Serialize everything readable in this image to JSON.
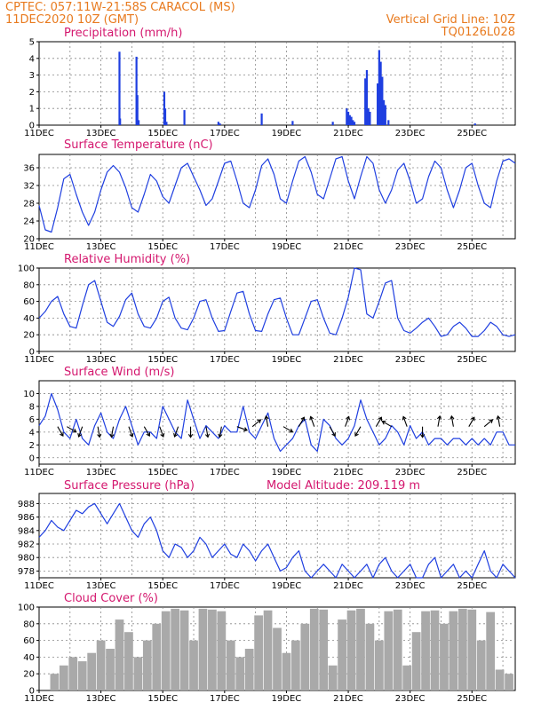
{
  "header": {
    "line1": "CPTEC:   057:11W-21:58S   CARACOL (MS)",
    "line2_left": "11DEC2020  10Z (GMT)",
    "line2_right": "Vertical Grid Line: 10Z",
    "line3_right": "TQ0126L028"
  },
  "colors": {
    "header": "#e87a1e",
    "title": "#d4176e",
    "series": "#1f3fe0",
    "cloud": "#a9a9a9"
  },
  "x_axis": {
    "start_date": "11DEC",
    "end_date": "26DEC",
    "tick_labels": [
      "11DEC",
      "13DEC",
      "15DEC",
      "17DEC",
      "19DEC",
      "21DEC",
      "23DEC",
      "25DEC"
    ],
    "tick_positions": [
      11,
      13,
      15,
      17,
      19,
      21,
      23,
      25
    ]
  },
  "chart_data": [
    {
      "id": "precip",
      "type": "bar",
      "title": "Precipitation (mm/h)",
      "ylim": [
        0,
        5
      ],
      "yticks": [
        0,
        1,
        2,
        3,
        4,
        5
      ],
      "xlim": [
        11,
        26.4
      ],
      "x": [
        13.6,
        13.62,
        14.15,
        14.18,
        14.22,
        15.05,
        15.08,
        15.12,
        15.7,
        16.8,
        16.85,
        18.2,
        19.2,
        20.5,
        20.95,
        21.0,
        21.05,
        21.1,
        21.15,
        21.2,
        21.55,
        21.6,
        21.65,
        21.7,
        21.95,
        22.0,
        22.05,
        22.1,
        22.15,
        22.2,
        22.3,
        25.1
      ],
      "values": [
        4.4,
        0.4,
        4.1,
        1.8,
        0.3,
        2.0,
        1.0,
        0.2,
        0.9,
        0.2,
        0.1,
        0.7,
        0.25,
        0.2,
        1.0,
        0.8,
        0.6,
        0.5,
        0.3,
        0.2,
        2.8,
        3.3,
        1.0,
        0.8,
        2.5,
        4.5,
        3.8,
        2.9,
        1.5,
        1.2,
        0.3,
        0.1
      ]
    },
    {
      "id": "temp",
      "type": "line",
      "title": "Surface Temperature (nC)",
      "ylim": [
        20,
        39
      ],
      "yticks": [
        20,
        24,
        28,
        32,
        36
      ],
      "xlim": [
        11,
        26.4
      ],
      "x": [
        11,
        11.2,
        11.4,
        11.6,
        11.8,
        12.0,
        12.2,
        12.4,
        12.6,
        12.8,
        13.0,
        13.2,
        13.4,
        13.6,
        13.8,
        14.0,
        14.2,
        14.4,
        14.6,
        14.8,
        15.0,
        15.2,
        15.4,
        15.6,
        15.8,
        16.0,
        16.2,
        16.4,
        16.6,
        16.8,
        17.0,
        17.2,
        17.4,
        17.6,
        17.8,
        18.0,
        18.2,
        18.4,
        18.6,
        18.8,
        19.0,
        19.2,
        19.4,
        19.6,
        19.8,
        20.0,
        20.2,
        20.4,
        20.6,
        20.8,
        21.0,
        21.2,
        21.4,
        21.6,
        21.8,
        22.0,
        22.2,
        22.4,
        22.6,
        22.8,
        23.0,
        23.2,
        23.4,
        23.6,
        23.8,
        24.0,
        24.2,
        24.4,
        24.6,
        24.8,
        25.0,
        25.2,
        25.4,
        25.6,
        25.8,
        26.0,
        26.2,
        26.4
      ],
      "values": [
        27.5,
        22,
        21.5,
        27,
        33.5,
        34.5,
        30,
        26,
        23,
        26,
        31,
        35,
        36.5,
        35,
        31.5,
        27,
        26,
        30,
        34.5,
        33,
        29.5,
        28,
        32,
        36,
        37,
        34,
        31,
        27.5,
        29,
        33,
        37,
        37.5,
        33,
        28,
        27,
        31,
        36.5,
        38,
        34.5,
        29,
        28,
        33,
        37.5,
        38.5,
        35,
        30,
        29,
        33.5,
        38,
        38.5,
        33,
        29,
        34,
        38.5,
        37,
        31,
        28,
        31,
        35.5,
        37,
        33,
        28,
        29,
        34,
        37.5,
        36,
        31,
        27,
        31,
        36,
        37,
        32,
        28,
        27,
        33,
        37.5,
        38,
        37
      ]
    },
    {
      "id": "rh",
      "type": "line",
      "title": "Relative Humidity (%)",
      "ylim": [
        0,
        100
      ],
      "yticks": [
        0,
        20,
        40,
        60,
        80,
        100
      ],
      "xlim": [
        11,
        26.4
      ],
      "x": [
        11,
        11.2,
        11.4,
        11.6,
        11.8,
        12.0,
        12.2,
        12.4,
        12.6,
        12.8,
        13.0,
        13.2,
        13.4,
        13.6,
        13.8,
        14.0,
        14.2,
        14.4,
        14.6,
        14.8,
        15.0,
        15.2,
        15.4,
        15.6,
        15.8,
        16.0,
        16.2,
        16.4,
        16.6,
        16.8,
        17.0,
        17.2,
        17.4,
        17.6,
        17.8,
        18.0,
        18.2,
        18.4,
        18.6,
        18.8,
        19.0,
        19.2,
        19.4,
        19.6,
        19.8,
        20.0,
        20.2,
        20.4,
        20.6,
        20.8,
        21.0,
        21.2,
        21.4,
        21.6,
        21.8,
        22.0,
        22.2,
        22.4,
        22.6,
        22.8,
        23.0,
        23.2,
        23.4,
        23.6,
        23.8,
        24.0,
        24.2,
        24.4,
        24.6,
        24.8,
        25.0,
        25.2,
        25.4,
        25.6,
        25.8,
        26.0,
        26.2,
        26.4
      ],
      "values": [
        40,
        48,
        60,
        66,
        45,
        30,
        28,
        55,
        80,
        85,
        60,
        35,
        30,
        42,
        62,
        70,
        45,
        30,
        28,
        40,
        60,
        65,
        40,
        28,
        26,
        40,
        60,
        62,
        40,
        24,
        25,
        48,
        70,
        72,
        45,
        25,
        24,
        45,
        62,
        64,
        40,
        20,
        20,
        40,
        60,
        62,
        40,
        22,
        20,
        40,
        65,
        100,
        98,
        45,
        40,
        60,
        82,
        85,
        40,
        25,
        22,
        28,
        35,
        40,
        30,
        18,
        20,
        30,
        35,
        28,
        18,
        18,
        25,
        35,
        30,
        20,
        18,
        20
      ]
    },
    {
      "id": "wind",
      "type": "line",
      "title": "Surface Wind (m/s)",
      "ylim": [
        -1,
        12
      ],
      "yticks": [
        0,
        2,
        4,
        6,
        8,
        10
      ],
      "xlim": [
        11,
        26.4
      ],
      "x": [
        11,
        11.2,
        11.4,
        11.6,
        11.8,
        12.0,
        12.2,
        12.4,
        12.6,
        12.8,
        13.0,
        13.2,
        13.4,
        13.6,
        13.8,
        14.0,
        14.2,
        14.4,
        14.6,
        14.8,
        15.0,
        15.2,
        15.4,
        15.6,
        15.8,
        16.0,
        16.2,
        16.4,
        16.6,
        16.8,
        17.0,
        17.2,
        17.4,
        17.6,
        17.8,
        18.0,
        18.2,
        18.4,
        18.6,
        18.8,
        19.0,
        19.2,
        19.4,
        19.6,
        19.8,
        20.0,
        20.2,
        20.4,
        20.6,
        20.8,
        21.0,
        21.2,
        21.4,
        21.6,
        21.8,
        22.0,
        22.2,
        22.4,
        22.6,
        22.8,
        23.0,
        23.2,
        23.4,
        23.6,
        23.8,
        24.0,
        24.2,
        24.4,
        24.6,
        24.8,
        25.0,
        25.2,
        25.4,
        25.6,
        25.8,
        26.0,
        26.2,
        26.4
      ],
      "values": [
        5,
        6.5,
        10,
        7.5,
        4,
        3,
        6,
        3,
        2,
        5,
        7,
        4,
        3,
        6,
        8,
        5,
        2,
        4,
        4,
        3,
        8,
        6,
        4,
        3,
        9,
        6,
        3,
        5,
        4,
        3,
        5,
        4,
        4,
        8,
        4,
        3,
        5,
        7,
        3,
        1,
        2,
        3,
        5,
        6,
        2,
        1,
        6,
        5,
        3,
        2,
        3,
        5,
        9,
        6,
        4,
        2,
        3,
        5,
        4,
        2,
        5,
        3,
        4,
        2,
        3,
        3,
        2,
        3,
        3,
        2,
        3,
        2,
        3,
        2,
        4,
        4,
        2,
        2
      ],
      "arrows": [
        [
          11.6,
          -60
        ],
        [
          11.9,
          -30
        ],
        [
          12.4,
          -110
        ],
        [
          12.9,
          -80
        ],
        [
          13.4,
          -100
        ],
        [
          13.9,
          -70
        ],
        [
          14.4,
          -60
        ],
        [
          14.9,
          -70
        ],
        [
          15.5,
          -110
        ],
        [
          15.9,
          -90
        ],
        [
          16.4,
          -80
        ],
        [
          16.9,
          -100
        ],
        [
          17.4,
          -20
        ],
        [
          17.9,
          40
        ],
        [
          18.4,
          100
        ],
        [
          18.9,
          -30
        ],
        [
          19.4,
          60
        ],
        [
          19.9,
          110
        ],
        [
          20.4,
          -60
        ],
        [
          20.9,
          70
        ],
        [
          21.4,
          -120
        ],
        [
          21.9,
          60
        ],
        [
          22.4,
          150
        ],
        [
          22.9,
          110
        ],
        [
          23.4,
          -90
        ],
        [
          23.9,
          80
        ],
        [
          24.4,
          100
        ],
        [
          24.9,
          60
        ],
        [
          25.4,
          40
        ],
        [
          25.9,
          100
        ]
      ]
    },
    {
      "id": "press",
      "type": "line",
      "title": "Surface Pressure (hPa)",
      "annotation": "Model Altitude: 209.119 m",
      "ylim": [
        977,
        989.5
      ],
      "yticks": [
        978,
        980,
        982,
        984,
        986,
        988
      ],
      "xlim": [
        11,
        26.4
      ],
      "x": [
        11,
        11.2,
        11.4,
        11.6,
        11.8,
        12.0,
        12.2,
        12.4,
        12.6,
        12.8,
        13.0,
        13.2,
        13.4,
        13.6,
        13.8,
        14.0,
        14.2,
        14.4,
        14.6,
        14.8,
        15.0,
        15.2,
        15.4,
        15.6,
        15.8,
        16.0,
        16.2,
        16.4,
        16.6,
        16.8,
        17.0,
        17.2,
        17.4,
        17.6,
        17.8,
        18.0,
        18.2,
        18.4,
        18.6,
        18.8,
        19.0,
        19.2,
        19.4,
        19.6,
        19.8,
        20.0,
        20.2,
        20.4,
        20.6,
        20.8,
        21.0,
        21.2,
        21.4,
        21.6,
        21.8,
        22.0,
        22.2,
        22.4,
        22.6,
        22.8,
        23.0,
        23.2,
        23.4,
        23.6,
        23.8,
        24.0,
        24.2,
        24.4,
        24.6,
        24.8,
        25.0,
        25.2,
        25.4,
        25.6,
        25.8,
        26.0,
        26.2,
        26.4
      ],
      "values": [
        983,
        984,
        985.5,
        984.5,
        984,
        985.5,
        987,
        986.5,
        987.5,
        988,
        986.5,
        985,
        986.5,
        988,
        986,
        984,
        983,
        985,
        986,
        984,
        981,
        980,
        982,
        981.5,
        980,
        981,
        983,
        982,
        980,
        981,
        982,
        980.5,
        980,
        982,
        981,
        979.5,
        981,
        982,
        980,
        978,
        978.5,
        980,
        981,
        978,
        977,
        978,
        979,
        978,
        977,
        979,
        978,
        977,
        978,
        979,
        977,
        979,
        980,
        978,
        977,
        978,
        979,
        977,
        977,
        979,
        980,
        977,
        978,
        979,
        977,
        978,
        977,
        979,
        981,
        978,
        977,
        979,
        978,
        977
      ]
    },
    {
      "id": "cloud",
      "type": "bar",
      "title": "Cloud Cover (%)",
      "ylim": [
        0,
        100
      ],
      "yticks": [
        0,
        20,
        40,
        60,
        80,
        100
      ],
      "xlim": [
        11,
        26.4
      ],
      "x": [
        11.5,
        11.8,
        12.1,
        12.4,
        12.7,
        13.0,
        13.3,
        13.6,
        13.9,
        14.2,
        14.5,
        14.8,
        15.1,
        15.4,
        15.7,
        16.0,
        16.3,
        16.6,
        16.9,
        17.2,
        17.5,
        17.8,
        18.1,
        18.4,
        18.7,
        19.0,
        19.3,
        19.6,
        19.9,
        20.2,
        20.5,
        20.8,
        21.1,
        21.4,
        21.7,
        22.0,
        22.3,
        22.6,
        22.9,
        23.2,
        23.5,
        23.8,
        24.1,
        24.4,
        24.7,
        25.0,
        25.3,
        25.6,
        25.9,
        26.2
      ],
      "values": [
        20,
        30,
        40,
        35,
        45,
        60,
        50,
        85,
        70,
        40,
        60,
        80,
        95,
        98,
        96,
        60,
        98,
        97,
        95,
        60,
        40,
        50,
        90,
        96,
        75,
        45,
        60,
        80,
        98,
        97,
        30,
        85,
        96,
        98,
        80,
        60,
        95,
        97,
        30,
        70,
        95,
        96,
        80,
        95,
        98,
        97,
        60,
        94,
        25,
        20
      ]
    }
  ]
}
